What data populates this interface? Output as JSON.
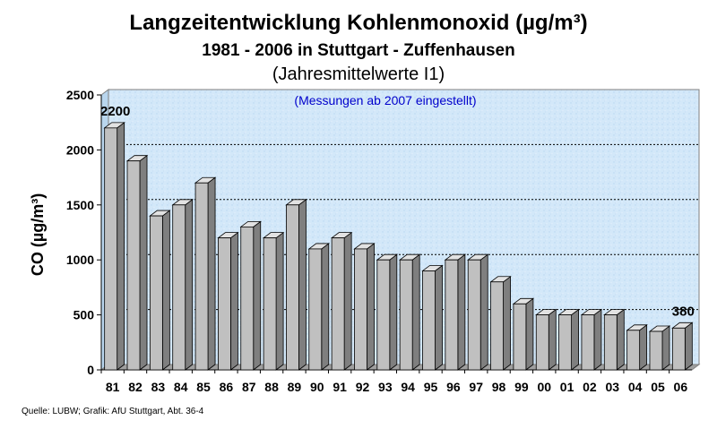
{
  "chart_data": {
    "type": "bar",
    "title": "Langzeitentwicklung Kohlenmonoxid (µg/m³)",
    "subtitle": "1981 - 2006 in Stuttgart - Zuffenhausen",
    "subtitle2": "(Jahresmittelwerte I1)",
    "annotation": "(Messungen ab 2007 eingestellt)",
    "annotation_color": "#0000cc",
    "xlabel": "",
    "ylabel": "CO (µg/m³)",
    "ylim": [
      0,
      2500
    ],
    "yticks": [
      0,
      500,
      1000,
      1500,
      2000,
      2500
    ],
    "ytick_labels": [
      "0",
      "500",
      "1000",
      "1500",
      "2000",
      "2500"
    ],
    "grid": true,
    "categories": [
      "81",
      "82",
      "83",
      "84",
      "85",
      "86",
      "87",
      "88",
      "89",
      "90",
      "91",
      "92",
      "93",
      "94",
      "95",
      "96",
      "97",
      "98",
      "99",
      "00",
      "01",
      "02",
      "03",
      "04",
      "05",
      "06"
    ],
    "values": [
      2200,
      1900,
      1400,
      1500,
      1700,
      1200,
      1300,
      1200,
      1500,
      1100,
      1200,
      1100,
      1000,
      1000,
      900,
      1000,
      1000,
      800,
      600,
      500,
      500,
      500,
      500,
      360,
      350,
      380
    ],
    "data_labels": [
      {
        "category": "81",
        "text": "2200"
      },
      {
        "category": "06",
        "text": "380"
      }
    ],
    "bar_color": "#c0c0c0",
    "background_color": "#cfe6f8"
  },
  "source": "Quelle: LUBW; Grafik: AfU Stuttgart, Abt. 36-4"
}
